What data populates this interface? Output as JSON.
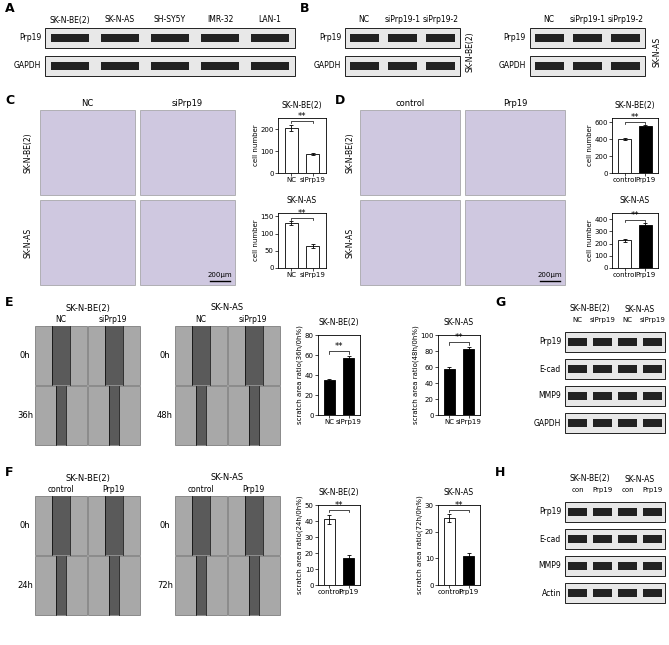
{
  "panel_labels": [
    "A",
    "B",
    "C",
    "D",
    "E",
    "F",
    "G",
    "H"
  ],
  "blots": {
    "A": {
      "lanes": [
        "SK-N-BE(2)",
        "SK-N-AS",
        "SH-SY5Y",
        "IMR-32",
        "LAN-1"
      ],
      "rows": [
        "Prp19",
        "GAPDH"
      ]
    },
    "B": {
      "cell_lines": [
        "SK-N-BE(2)",
        "SK-N-AS"
      ],
      "lanes": [
        "NC",
        "siPrp19-1",
        "siPrp19-2"
      ],
      "rows": [
        "Prp19",
        "GAPDH"
      ]
    },
    "G": {
      "cell_lines": [
        "SK-N-BE(2)",
        "SK-N-AS"
      ],
      "lanes": [
        "NC",
        "siPrp19"
      ],
      "rows": [
        "Prp19",
        "E-cad",
        "MMP9",
        "GAPDH"
      ]
    },
    "H": {
      "cell_lines": [
        "SK-N-BE(2)",
        "SK-N-AS"
      ],
      "lanes": [
        "con",
        "Prp19"
      ],
      "rows": [
        "Prp19",
        "E-cad",
        "MMP9",
        "Actin"
      ]
    }
  },
  "images": {
    "C": {
      "columns": [
        "NC",
        "siPrp19"
      ],
      "rows": [
        "SK-N-BE(2)",
        "SK-N-AS"
      ],
      "scale_bar": "200μm"
    },
    "D": {
      "columns": [
        "control",
        "Prp19"
      ],
      "rows": [
        "SK-N-BE(2)",
        "SK-N-AS"
      ],
      "scale_bar": "200μm"
    },
    "E": [
      {
        "cell_line": "SK-N-BE(2)",
        "columns": [
          "NC",
          "siPrp19"
        ],
        "times": [
          "0h",
          "36h"
        ]
      },
      {
        "cell_line": "SK-N-AS",
        "columns": [
          "NC",
          "siPrp19"
        ],
        "times": [
          "0h",
          "48h"
        ]
      }
    ],
    "F": [
      {
        "cell_line": "SK-N-BE(2)",
        "columns": [
          "control",
          "Prp19"
        ],
        "times": [
          "0h",
          "24h"
        ]
      },
      {
        "cell_line": "SK-N-AS",
        "columns": [
          "control",
          "Prp19"
        ],
        "times": [
          "0h",
          "72h"
        ]
      }
    ]
  },
  "chart_data": [
    {
      "type": "bar",
      "title": "SK-N-BE(2)",
      "y_label": "cell number",
      "categories": [
        "NC",
        "siPrp19"
      ],
      "values": [
        205,
        88
      ],
      "errors": [
        15,
        4
      ],
      "colors": [
        "#ffffff",
        "#ffffff"
      ],
      "ylim": [
        0,
        250
      ],
      "yticks": [
        0,
        100,
        200
      ],
      "annotation": "**"
    },
    {
      "type": "bar",
      "title": "SK-N-AS",
      "y_label": "cell number",
      "categories": [
        "NC",
        "siPrp19"
      ],
      "values": [
        130,
        65
      ],
      "errors": [
        6,
        6
      ],
      "colors": [
        "#ffffff",
        "#ffffff"
      ],
      "ylim": [
        0,
        160
      ],
      "yticks": [
        0,
        50,
        100,
        150
      ],
      "annotation": "**"
    },
    {
      "type": "bar",
      "title": "SK-N-BE(2)",
      "y_label": "cell number",
      "categories": [
        "control",
        "Prp19"
      ],
      "values": [
        400,
        550
      ],
      "errors": [
        10,
        15
      ],
      "colors": [
        "#ffffff",
        "#000000"
      ],
      "ylim": [
        0,
        650
      ],
      "yticks": [
        0,
        200,
        400,
        600
      ],
      "annotation": "**"
    },
    {
      "type": "bar",
      "title": "SK-N-AS",
      "y_label": "cell number",
      "categories": [
        "control",
        "Prp19"
      ],
      "values": [
        225,
        350
      ],
      "errors": [
        10,
        15
      ],
      "colors": [
        "#ffffff",
        "#000000"
      ],
      "ylim": [
        0,
        450
      ],
      "yticks": [
        0,
        100,
        200,
        300,
        400
      ],
      "annotation": "**"
    },
    {
      "type": "bar",
      "title": "SK-N-BE(2)",
      "y_label": "scratch area ratio(36h/0h%)",
      "categories": [
        "NC",
        "siPrp19"
      ],
      "values": [
        35,
        57
      ],
      "errors": [
        1.5,
        2
      ],
      "colors": [
        "#000000",
        "#000000"
      ],
      "ylim": [
        0,
        80
      ],
      "yticks": [
        0,
        20,
        40,
        60,
        80
      ],
      "annotation": "**"
    },
    {
      "type": "bar",
      "title": "SK-N-AS",
      "y_label": "scratch area ratio(48h/0h%)",
      "categories": [
        "NC",
        "siPrp19"
      ],
      "values": [
        57,
        82
      ],
      "errors": [
        3,
        3
      ],
      "colors": [
        "#000000",
        "#000000"
      ],
      "ylim": [
        0,
        100
      ],
      "yticks": [
        0,
        20,
        40,
        60,
        80,
        100
      ],
      "annotation": "**"
    },
    {
      "type": "bar",
      "title": "SK-N-BE(2)",
      "y_label": "scratch area ratio(24h/0h%)",
      "categories": [
        "control",
        "Prp19"
      ],
      "values": [
        41,
        17
      ],
      "errors": [
        3,
        1.5
      ],
      "colors": [
        "#ffffff",
        "#000000"
      ],
      "ylim": [
        0,
        50
      ],
      "yticks": [
        0,
        10,
        20,
        30,
        40,
        50
      ],
      "annotation": "**"
    },
    {
      "type": "bar",
      "title": "SK-N-AS",
      "y_label": "scratch area ratio(72h/0h%)",
      "categories": [
        "control",
        "Prp19"
      ],
      "values": [
        25,
        11
      ],
      "errors": [
        1.5,
        1
      ],
      "colors": [
        "#ffffff",
        "#000000"
      ],
      "ylim": [
        0,
        30
      ],
      "yticks": [
        0,
        10,
        20,
        30
      ],
      "annotation": "**"
    }
  ]
}
